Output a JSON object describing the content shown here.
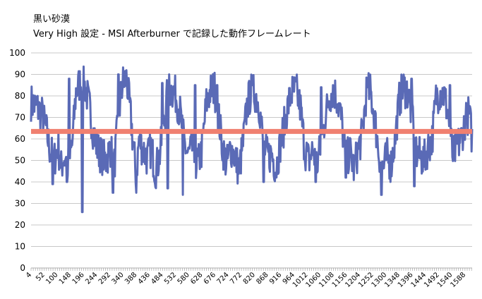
{
  "chart_data": {
    "type": "line",
    "title": "黒い砂漠",
    "subtitle": "Very High 設定 - MSI Afterburner で記録した動作フレームレート",
    "xlabel": "",
    "ylabel": "",
    "ylim": [
      0,
      100
    ],
    "yticks": [
      0,
      10,
      20,
      30,
      40,
      50,
      60,
      70,
      80,
      90,
      100
    ],
    "x_tick_labels": [
      "4",
      "52",
      "100",
      "148",
      "196",
      "244",
      "292",
      "340",
      "388",
      "436",
      "484",
      "532",
      "580",
      "628",
      "676",
      "724",
      "772",
      "820",
      "868",
      "916",
      "964",
      "1012",
      "1060",
      "1108",
      "1156",
      "1204",
      "1252",
      "1300",
      "1348",
      "1396",
      "1444",
      "1492",
      "1540",
      "1588"
    ],
    "x_start": 1,
    "x_end": 1611,
    "grid": true,
    "legend": "none",
    "series": [
      {
        "color": "#5a6ab6",
        "x": [
          1,
          20,
          40,
          55,
          70,
          85,
          100,
          110,
          120,
          135,
          150,
          165,
          180,
          200,
          215,
          230,
          245,
          260,
          275,
          290,
          305,
          320,
          335,
          350,
          365,
          385,
          395,
          410,
          425,
          440,
          455,
          470,
          485,
          500,
          515,
          530,
          545,
          560,
          575,
          590,
          600,
          610,
          625,
          640,
          655,
          670,
          685,
          700,
          715,
          730,
          745,
          760,
          775,
          790,
          805,
          820,
          835,
          850,
          865,
          880,
          895,
          910,
          925,
          940,
          955,
          970,
          985,
          1000,
          1015,
          1030,
          1045,
          1060,
          1075,
          1090,
          1105,
          1120,
          1135,
          1150,
          1165,
          1180,
          1195,
          1210,
          1225,
          1240,
          1255,
          1270,
          1285,
          1300,
          1315,
          1330,
          1345,
          1360,
          1375,
          1390,
          1405,
          1420,
          1435,
          1450,
          1465,
          1480,
          1495,
          1510,
          1525,
          1540,
          1555,
          1570,
          1585,
          1600,
          1611
        ],
        "y": [
          77,
          75,
          72,
          65,
          55,
          50,
          57,
          46,
          52,
          48,
          55,
          82,
          86,
          84,
          74,
          62,
          55,
          52,
          50,
          56,
          48,
          70,
          86,
          88,
          70,
          42,
          60,
          55,
          51,
          56,
          45,
          52,
          66,
          82,
          83,
          80,
          72,
          58,
          52,
          56,
          50,
          48,
          55,
          76,
          82,
          84,
          71,
          56,
          48,
          56,
          52,
          45,
          58,
          76,
          82,
          81,
          75,
          56,
          52,
          53,
          46,
          57,
          66,
          76,
          82,
          82,
          74,
          55,
          50,
          55,
          48,
          58,
          70,
          80,
          83,
          78,
          68,
          50,
          54,
          46,
          55,
          62,
          82,
          82,
          70,
          54,
          46,
          52,
          48,
          60,
          78,
          84,
          82,
          72,
          54,
          52,
          50,
          56,
          60,
          80,
          82,
          80,
          70,
          52,
          56,
          60,
          68,
          72,
          60
        ],
        "mins": [
          [
            80,
            39
          ],
          [
            132,
            40
          ],
          [
            188,
            26
          ],
          [
            300,
            35
          ],
          [
            385,
            35
          ],
          [
            500,
            37
          ],
          [
            555,
            34
          ],
          [
            850,
            40
          ],
          [
            1040,
            40
          ],
          [
            1150,
            42
          ],
          [
            1280,
            34
          ],
          [
            1400,
            38
          ]
        ],
        "maxs": [
          [
            140,
            88
          ],
          [
            320,
            90
          ],
          [
            480,
            86
          ],
          [
            600,
            85
          ],
          [
            680,
            85
          ],
          [
            810,
            85
          ],
          [
            1060,
            84
          ],
          [
            1230,
            84
          ],
          [
            1390,
            88
          ],
          [
            1530,
            85
          ],
          [
            1592,
            75
          ]
        ]
      },
      {
        "color": "#f08070",
        "type": "hline",
        "y": 63.5
      }
    ]
  }
}
